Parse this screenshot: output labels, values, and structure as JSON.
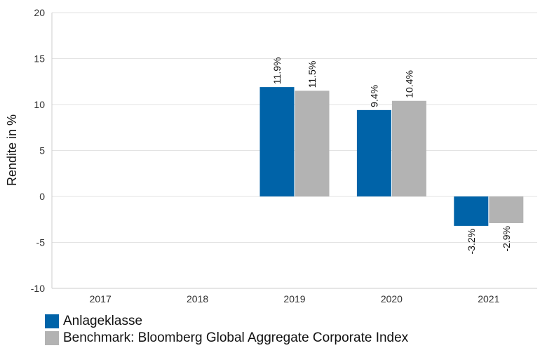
{
  "chart_data": {
    "type": "bar",
    "categories": [
      "2017",
      "2018",
      "2019",
      "2020",
      "2021"
    ],
    "series": [
      {
        "name": "Anlageklasse",
        "color": "#0063A8",
        "values": [
          null,
          null,
          11.9,
          9.4,
          -3.2
        ],
        "labels": [
          "",
          "",
          "11.9%",
          "9.4%",
          "-3.2%"
        ]
      },
      {
        "name": "Benchmark: Bloomberg Global Aggregate Corporate Index",
        "color": "#B3B3B3",
        "values": [
          null,
          null,
          11.5,
          10.4,
          -2.9
        ],
        "labels": [
          "",
          "",
          "11.5%",
          "10.4%",
          "-2.9%"
        ]
      }
    ],
    "ylabel": "Rendite in %",
    "xlabel": "",
    "ylim": [
      -10,
      20
    ],
    "yticks": [
      "-10",
      "-5",
      "0",
      "5",
      "10",
      "15",
      "20"
    ],
    "grid": true,
    "legend_position": "bottom-left"
  }
}
